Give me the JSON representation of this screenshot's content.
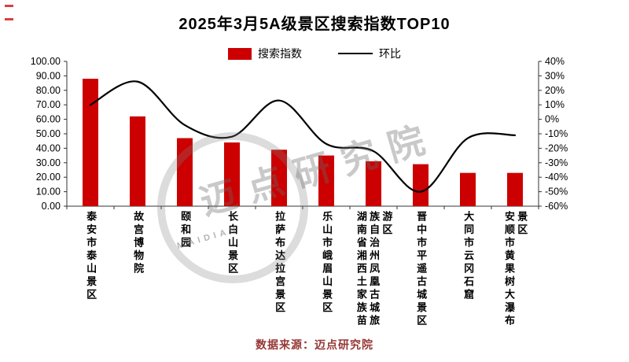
{
  "title": "2025年3月5A级景区搜索指数TOP10",
  "legend": {
    "bar": "搜索指数",
    "line": "环比"
  },
  "source": "数据来源：迈点研究院",
  "watermark": "迈点研究院",
  "watermark_sub": "MAIDIAN",
  "colors": {
    "bar": "#cc0000",
    "line": "#000000",
    "axis": "#333333",
    "source_text": "#953735"
  },
  "chart_data": {
    "type": "bar",
    "categories": [
      "泰安市泰山景区",
      "故宫博物院",
      "颐和园",
      "长白山景区",
      "拉萨布达拉宫景区",
      "乐山市峨眉山景区",
      "湖南省湘西土家族苗族自治州凤凰古城旅游区",
      "晋中市平遥古城景区",
      "大同市云冈石窟",
      "安顺市黄果树大瀑布景区"
    ],
    "series": [
      {
        "name": "搜索指数",
        "type": "bar",
        "axis": "left",
        "values": [
          88,
          62,
          47,
          44,
          39,
          35,
          31,
          29,
          23,
          23
        ]
      },
      {
        "name": "环比",
        "type": "line",
        "axis": "right",
        "values": [
          10,
          26,
          -4,
          -12,
          13,
          -17,
          -22,
          -50,
          -13,
          -11
        ]
      }
    ],
    "left_axis": {
      "min": 0,
      "max": 100,
      "step": 10,
      "format": "fixed2"
    },
    "right_axis": {
      "min": -60,
      "max": 40,
      "step": 10,
      "format": "percent"
    },
    "grid": false,
    "legend_position": "top"
  }
}
